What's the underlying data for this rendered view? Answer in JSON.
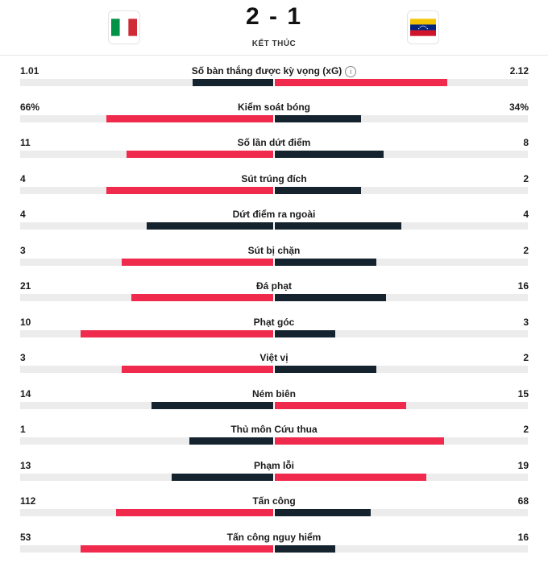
{
  "match": {
    "score": "2 - 1",
    "status": "KẾT THÚC",
    "home_flag_icon": "italy-flag-icon",
    "away_flag_icon": "venezuela-flag-icon"
  },
  "colors": {
    "leader": "#f02a4c",
    "trailer": "#14232d",
    "track": "#ececec"
  },
  "stats": [
    {
      "label": "Số bàn thắng được kỳ vọng (xG)",
      "home": "1.01",
      "away": "2.12",
      "home_fill": 0.32,
      "away_fill": 0.68,
      "info": true
    },
    {
      "label": "Kiểm soát bóng",
      "home": "66%",
      "away": "34%",
      "home_fill": 0.66,
      "away_fill": 0.34
    },
    {
      "label": "Số lần dứt điểm",
      "home": "11",
      "away": "8",
      "home_fill": 0.58,
      "away_fill": 0.43
    },
    {
      "label": "Sút trúng đích",
      "home": "4",
      "away": "2",
      "home_fill": 0.66,
      "away_fill": 0.34
    },
    {
      "label": "Dứt điểm ra ngoài",
      "home": "4",
      "away": "4",
      "home_fill": 0.5,
      "away_fill": 0.5
    },
    {
      "label": "Sút bị chặn",
      "home": "3",
      "away": "2",
      "home_fill": 0.6,
      "away_fill": 0.4
    },
    {
      "label": "Đá phạt",
      "home": "21",
      "away": "16",
      "home_fill": 0.56,
      "away_fill": 0.44
    },
    {
      "label": "Phạt góc",
      "home": "10",
      "away": "3",
      "home_fill": 0.76,
      "away_fill": 0.24
    },
    {
      "label": "Việt vị",
      "home": "3",
      "away": "2",
      "home_fill": 0.6,
      "away_fill": 0.4
    },
    {
      "label": "Ném biên",
      "home": "14",
      "away": "15",
      "home_fill": 0.48,
      "away_fill": 0.52
    },
    {
      "label": "Thủ môn Cứu thua",
      "home": "1",
      "away": "2",
      "home_fill": 0.33,
      "away_fill": 0.67
    },
    {
      "label": "Phạm lỗi",
      "home": "13",
      "away": "19",
      "home_fill": 0.4,
      "away_fill": 0.6
    },
    {
      "label": "Tấn công",
      "home": "112",
      "away": "68",
      "home_fill": 0.62,
      "away_fill": 0.38
    },
    {
      "label": "Tấn công nguy hiểm",
      "home": "53",
      "away": "16",
      "home_fill": 0.76,
      "away_fill": 0.24
    }
  ]
}
